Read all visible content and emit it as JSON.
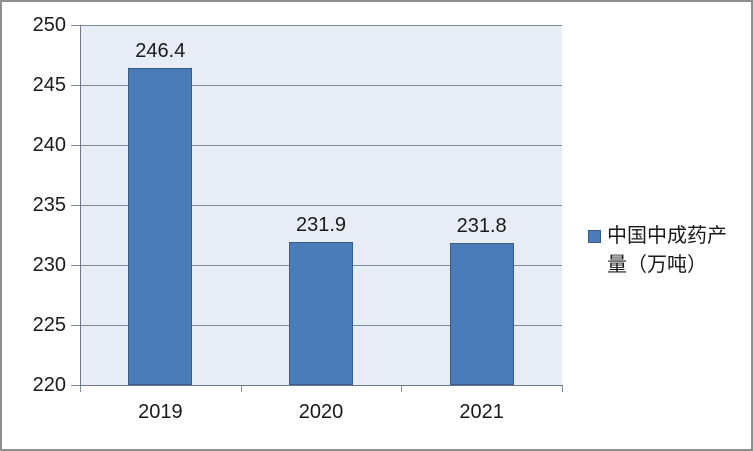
{
  "chart_data": {
    "type": "bar",
    "title": "",
    "categories": [
      "2019",
      "2020",
      "2021"
    ],
    "values": [
      246.4,
      231.9,
      231.8
    ],
    "data_labels": [
      "246.4",
      "231.9",
      "231.8"
    ],
    "ylim": [
      220,
      250
    ],
    "ytick_step": 5,
    "ytick_labels": [
      "220",
      "225",
      "230",
      "235",
      "240",
      "245",
      "250"
    ],
    "grid": true,
    "legend": {
      "position": "right",
      "label": "中国中成药产量（万吨）",
      "line1": "中国中成药产",
      "line2": "量（万吨）"
    },
    "colors": {
      "bar_fill": "#4a7cba",
      "bar_border": "#385d8a",
      "plot_background": "#e8ecf4",
      "gridline": "#808a9a",
      "axis": "#6e7888",
      "text": "#1a1a1a",
      "chart_border": "#8e8e8e",
      "background": "#ffffff"
    }
  }
}
